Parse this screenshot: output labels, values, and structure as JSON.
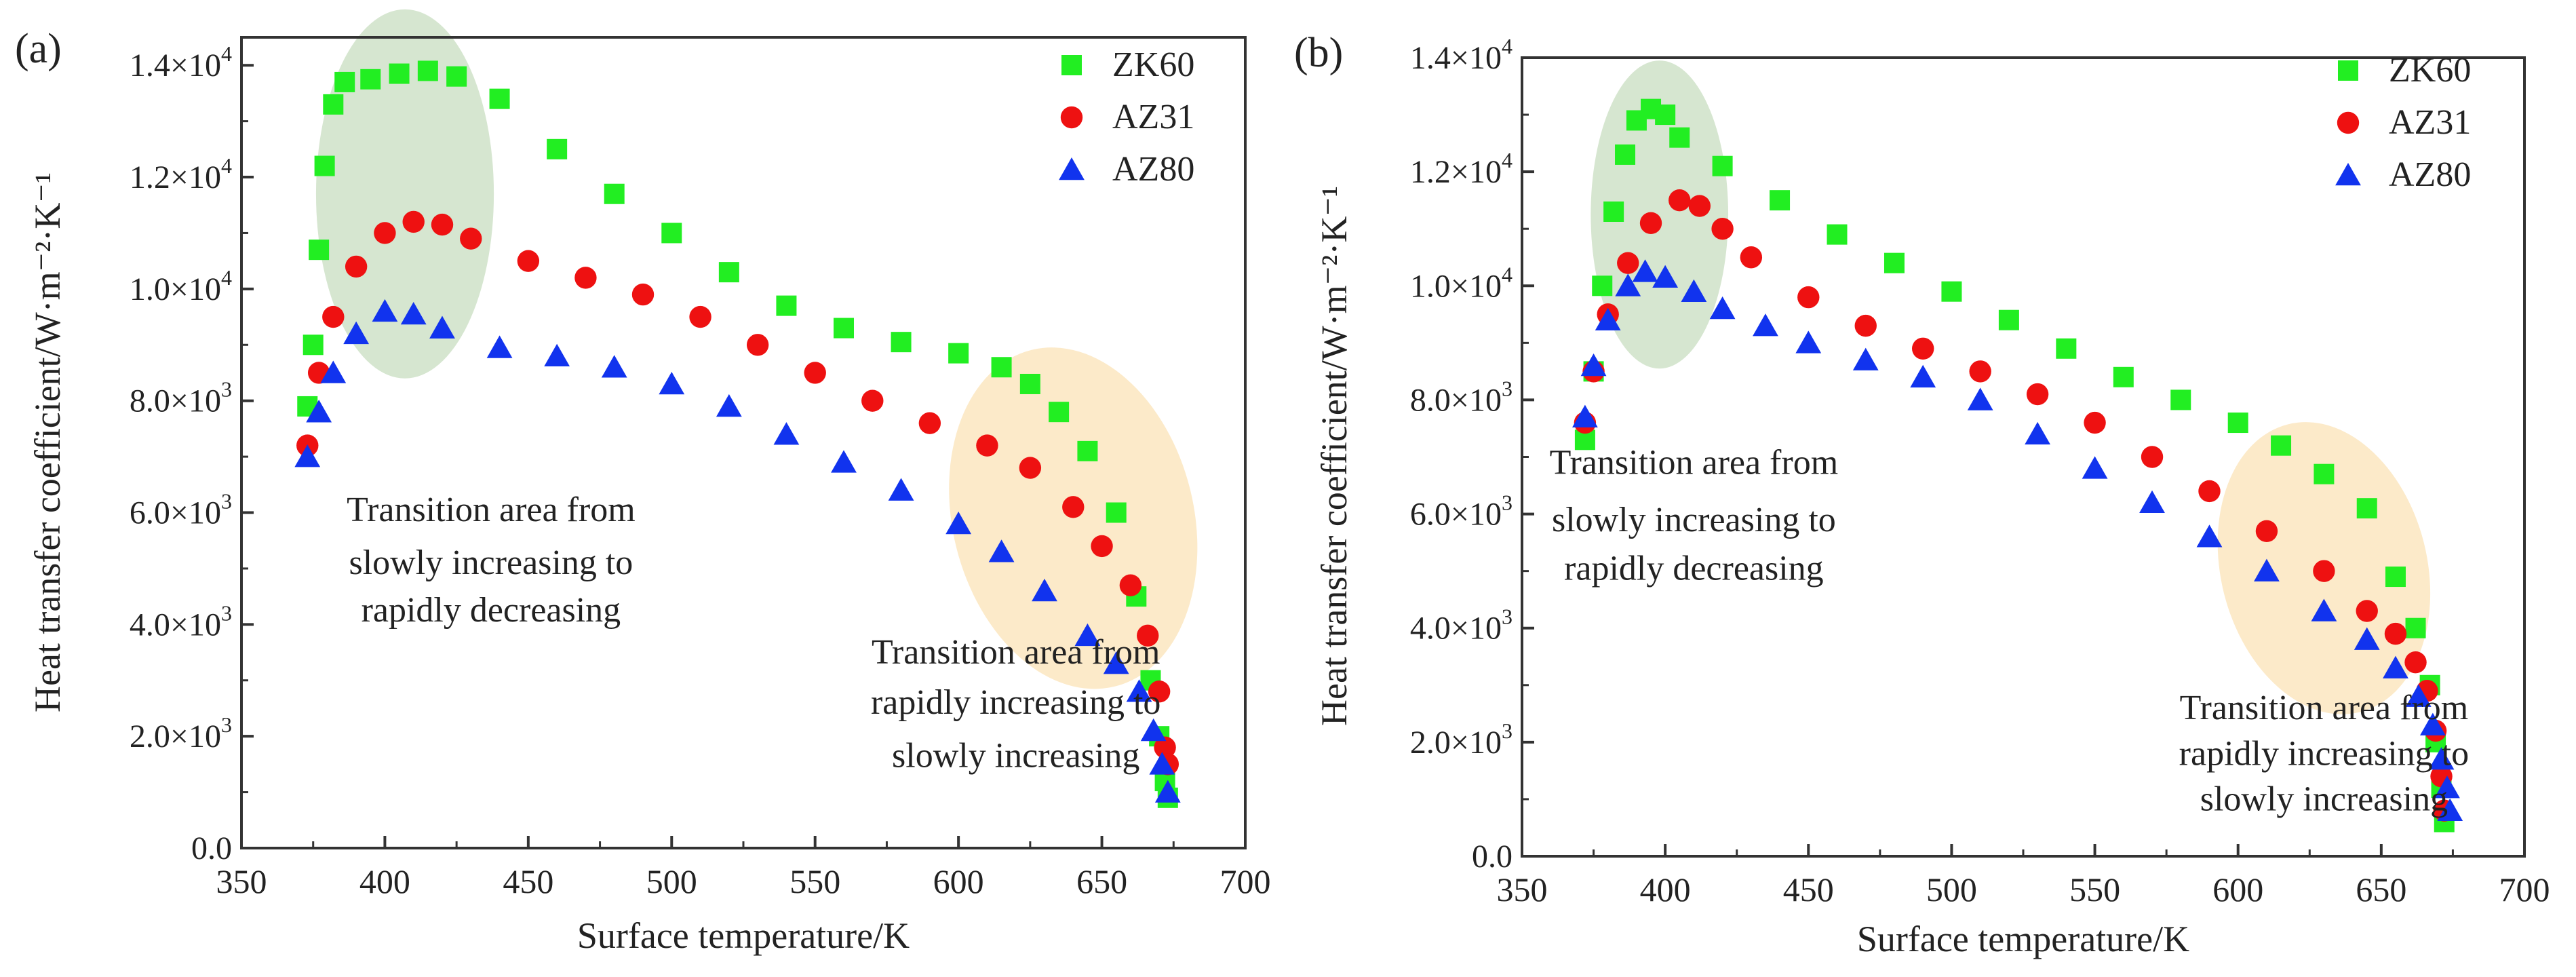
{
  "chart_data": [
    {
      "type": "scatter",
      "panel_label": "(a)",
      "xlabel": "Surface temperature/K",
      "ylabel": "Heat transfer coefficient/W·m⁻²·K⁻¹",
      "xlim": [
        350,
        700
      ],
      "ylim": [
        0,
        14500
      ],
      "xticks": [
        350,
        400,
        450,
        500,
        550,
        600,
        650,
        700
      ],
      "xtick_labels": [
        "350",
        "400",
        "450",
        "500",
        "550",
        "600",
        "650",
        "700"
      ],
      "yticks": [
        0,
        2000,
        4000,
        6000,
        8000,
        10000,
        12000,
        14000
      ],
      "ytick_labels": [
        {
          "mant": "0.0",
          "exp": ""
        },
        {
          "mant": "2.0×10",
          "exp": "3"
        },
        {
          "mant": "4.0×10",
          "exp": "3"
        },
        {
          "mant": "6.0×10",
          "exp": "3"
        },
        {
          "mant": "8.0×10",
          "exp": "3"
        },
        {
          "mant": "1.0×10",
          "exp": "4"
        },
        {
          "mant": "1.2×10",
          "exp": "4"
        },
        {
          "mant": "1.4×10",
          "exp": "4"
        }
      ],
      "legend_position": "top-right",
      "series": [
        {
          "name": "ZK60",
          "marker": "square",
          "color": "#22ee22",
          "points": [
            [
              373,
              7900
            ],
            [
              375,
              9000
            ],
            [
              377,
              10700
            ],
            [
              379,
              12200
            ],
            [
              382,
              13300
            ],
            [
              386,
              13700
            ],
            [
              395,
              13750
            ],
            [
              405,
              13850
            ],
            [
              415,
              13900
            ],
            [
              425,
              13800
            ],
            [
              440,
              13400
            ],
            [
              460,
              12500
            ],
            [
              480,
              11700
            ],
            [
              500,
              11000
            ],
            [
              520,
              10300
            ],
            [
              540,
              9700
            ],
            [
              560,
              9300
            ],
            [
              580,
              9050
            ],
            [
              600,
              8850
            ],
            [
              615,
              8600
            ],
            [
              625,
              8300
            ],
            [
              635,
              7800
            ],
            [
              645,
              7100
            ],
            [
              655,
              6000
            ],
            [
              662,
              4500
            ],
            [
              667,
              3000
            ],
            [
              670,
              2000
            ],
            [
              672,
              1200
            ],
            [
              673,
              900
            ]
          ]
        },
        {
          "name": "AZ31",
          "marker": "circle",
          "color": "#ee1111",
          "points": [
            [
              373,
              7200
            ],
            [
              377,
              8500
            ],
            [
              382,
              9500
            ],
            [
              390,
              10400
            ],
            [
              400,
              11000
            ],
            [
              410,
              11200
            ],
            [
              420,
              11150
            ],
            [
              430,
              10900
            ],
            [
              450,
              10500
            ],
            [
              470,
              10200
            ],
            [
              490,
              9900
            ],
            [
              510,
              9500
            ],
            [
              530,
              9000
            ],
            [
              550,
              8500
            ],
            [
              570,
              8000
            ],
            [
              590,
              7600
            ],
            [
              610,
              7200
            ],
            [
              625,
              6800
            ],
            [
              640,
              6100
            ],
            [
              650,
              5400
            ],
            [
              660,
              4700
            ],
            [
              666,
              3800
            ],
            [
              670,
              2800
            ],
            [
              672,
              1800
            ],
            [
              673,
              1500
            ]
          ]
        },
        {
          "name": "AZ80",
          "marker": "triangle",
          "color": "#1133ee",
          "points": [
            [
              373,
              7000
            ],
            [
              377,
              7800
            ],
            [
              382,
              8500
            ],
            [
              390,
              9200
            ],
            [
              400,
              9600
            ],
            [
              410,
              9550
            ],
            [
              420,
              9300
            ],
            [
              440,
              8950
            ],
            [
              460,
              8800
            ],
            [
              480,
              8600
            ],
            [
              500,
              8300
            ],
            [
              520,
              7900
            ],
            [
              540,
              7400
            ],
            [
              560,
              6900
            ],
            [
              580,
              6400
            ],
            [
              600,
              5800
            ],
            [
              615,
              5300
            ],
            [
              630,
              4600
            ],
            [
              645,
              3800
            ],
            [
              655,
              3300
            ],
            [
              663,
              2800
            ],
            [
              668,
              2100
            ],
            [
              671,
              1500
            ],
            [
              673,
              1000
            ]
          ]
        }
      ],
      "annotations": [
        {
          "lines": [
            "Transition area from",
            "slowly increasing to",
            "rapidly decreasing"
          ],
          "x": 437,
          "y": [
            5850,
            4900,
            4050
          ]
        },
        {
          "lines": [
            "Transition area from",
            "rapidly increasing to",
            "slowly increasing"
          ],
          "x": 620,
          "y": [
            3300,
            2400,
            1450
          ]
        }
      ],
      "highlights": [
        {
          "color": "#cfe2c8",
          "cx": 407,
          "cy": 11700,
          "rx": 31,
          "ry": 3300,
          "rotate": 0
        },
        {
          "color": "#fbe6bf",
          "cx": 640,
          "cy": 5900,
          "rx": 42,
          "ry": 3100,
          "rotate": -14
        }
      ]
    },
    {
      "type": "scatter",
      "panel_label": "(b)",
      "xlabel": "Surface temperature/K",
      "ylabel": "Heat transfer coefficient/W·m⁻²·K⁻¹",
      "xlim": [
        350,
        700
      ],
      "ylim": [
        0,
        14000
      ],
      "xticks": [
        350,
        400,
        450,
        500,
        550,
        600,
        650,
        700
      ],
      "xtick_labels": [
        "350",
        "400",
        "450",
        "500",
        "550",
        "600",
        "650",
        "700"
      ],
      "yticks": [
        0,
        2000,
        4000,
        6000,
        8000,
        10000,
        12000,
        14000
      ],
      "ytick_labels": [
        {
          "mant": "0.0",
          "exp": ""
        },
        {
          "mant": "2.0×10",
          "exp": "3"
        },
        {
          "mant": "4.0×10",
          "exp": "3"
        },
        {
          "mant": "6.0×10",
          "exp": "3"
        },
        {
          "mant": "8.0×10",
          "exp": "3"
        },
        {
          "mant": "1.0×10",
          "exp": "4"
        },
        {
          "mant": "1.2×10",
          "exp": "4"
        },
        {
          "mant": "1.4×10",
          "exp": "4"
        }
      ],
      "legend_position": "top-right",
      "series": [
        {
          "name": "ZK60",
          "marker": "square",
          "color": "#22ee22",
          "points": [
            [
              372,
              7300
            ],
            [
              375,
              8500
            ],
            [
              378,
              10000
            ],
            [
              382,
              11300
            ],
            [
              386,
              12300
            ],
            [
              390,
              12900
            ],
            [
              395,
              13100
            ],
            [
              400,
              13000
            ],
            [
              405,
              12600
            ],
            [
              420,
              12100
            ],
            [
              440,
              11500
            ],
            [
              460,
              10900
            ],
            [
              480,
              10400
            ],
            [
              500,
              9900
            ],
            [
              520,
              9400
            ],
            [
              540,
              8900
            ],
            [
              560,
              8400
            ],
            [
              580,
              8000
            ],
            [
              600,
              7600
            ],
            [
              615,
              7200
            ],
            [
              630,
              6700
            ],
            [
              645,
              6100
            ],
            [
              655,
              4900
            ],
            [
              662,
              4000
            ],
            [
              667,
              3000
            ],
            [
              669,
              2000
            ],
            [
              671,
              1200
            ],
            [
              672,
              600
            ]
          ]
        },
        {
          "name": "AZ31",
          "marker": "circle",
          "color": "#ee1111",
          "points": [
            [
              372,
              7600
            ],
            [
              375,
              8500
            ],
            [
              380,
              9500
            ],
            [
              387,
              10400
            ],
            [
              395,
              11100
            ],
            [
              405,
              11500
            ],
            [
              412,
              11400
            ],
            [
              420,
              11000
            ],
            [
              430,
              10500
            ],
            [
              450,
              9800
            ],
            [
              470,
              9300
            ],
            [
              490,
              8900
            ],
            [
              510,
              8500
            ],
            [
              530,
              8100
            ],
            [
              550,
              7600
            ],
            [
              570,
              7000
            ],
            [
              590,
              6400
            ],
            [
              610,
              5700
            ],
            [
              630,
              5000
            ],
            [
              645,
              4300
            ],
            [
              655,
              3900
            ],
            [
              662,
              3400
            ],
            [
              666,
              2900
            ],
            [
              669,
              2200
            ],
            [
              671,
              1400
            ],
            [
              672,
              800
            ]
          ]
        },
        {
          "name": "AZ80",
          "marker": "triangle",
          "color": "#1133ee",
          "points": [
            [
              372,
              7700
            ],
            [
              375,
              8600
            ],
            [
              380,
              9400
            ],
            [
              387,
              10000
            ],
            [
              393,
              10250
            ],
            [
              400,
              10150
            ],
            [
              410,
              9900
            ],
            [
              420,
              9600
            ],
            [
              435,
              9300
            ],
            [
              450,
              9000
            ],
            [
              470,
              8700
            ],
            [
              490,
              8400
            ],
            [
              510,
              8000
            ],
            [
              530,
              7400
            ],
            [
              550,
              6800
            ],
            [
              570,
              6200
            ],
            [
              590,
              5600
            ],
            [
              610,
              5000
            ],
            [
              630,
              4300
            ],
            [
              645,
              3800
            ],
            [
              655,
              3300
            ],
            [
              663,
              2800
            ],
            [
              668,
              2300
            ],
            [
              671,
              1700
            ],
            [
              673,
              1200
            ],
            [
              674,
              800
            ]
          ]
        }
      ],
      "annotations": [
        {
          "lines": [
            "Transition area from",
            "slowly increasing to",
            "rapidly decreasing"
          ],
          "x": 410,
          "y": [
            6700,
            5700,
            4850
          ]
        },
        {
          "lines": [
            "Transition area from",
            "rapidly increasing to",
            "slowly increasing"
          ],
          "x": 630,
          "y": [
            2400,
            1600,
            800
          ]
        }
      ],
      "highlights": [
        {
          "color": "#cfe2c8",
          "cx": 398,
          "cy": 11250,
          "rx": 24,
          "ry": 2700,
          "rotate": 0
        },
        {
          "color": "#fbe6bf",
          "cx": 630,
          "cy": 5050,
          "rx": 36,
          "ry": 2600,
          "rotate": -14
        }
      ]
    }
  ]
}
